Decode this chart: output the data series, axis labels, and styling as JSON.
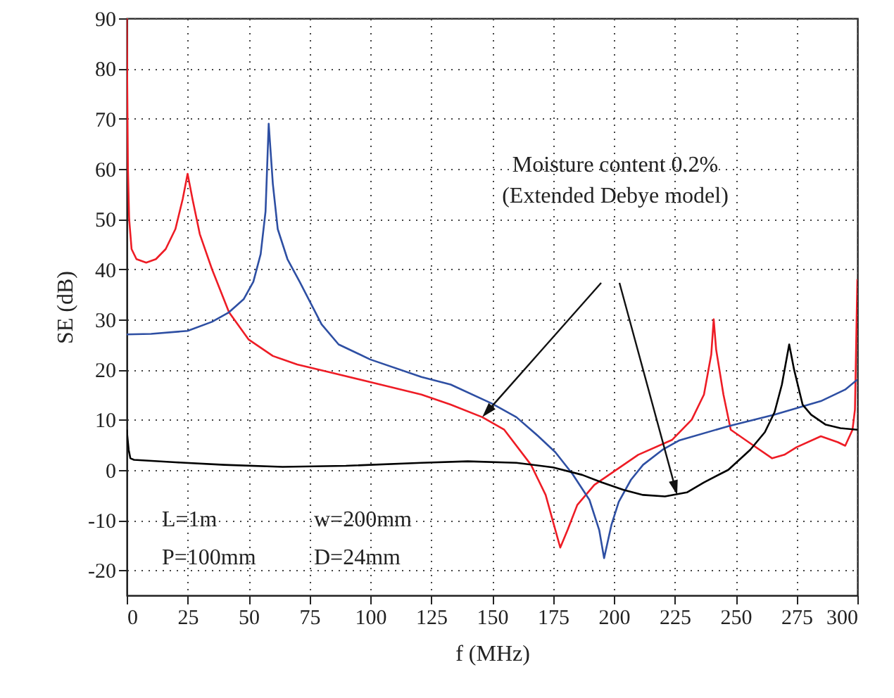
{
  "chart_data": {
    "type": "line",
    "xlabel": "f (MHz)",
    "ylabel": "SE (dB)",
    "xlim": [
      0,
      300
    ],
    "xticks": [
      0,
      25,
      50,
      75,
      100,
      125,
      150,
      175,
      200,
      225,
      250,
      275,
      300
    ],
    "ylim": [
      -25,
      90
    ],
    "yticks": [
      -20,
      -10,
      0,
      10,
      20,
      30,
      40,
      50,
      60,
      70,
      80,
      90
    ],
    "grid": true,
    "annotations": [
      "Moisture content 0.2%\n(Extended Debye model)",
      "L=1m",
      "w=200mm",
      "P=100mm",
      "D=24mm"
    ],
    "series": [
      {
        "color": "#ee1c25",
        "x": [
          0,
          0.5,
          1,
          2,
          4,
          8,
          12,
          16,
          20,
          23,
          25,
          27,
          30,
          35,
          42,
          50,
          60,
          70,
          83,
          100,
          121,
          133,
          146,
          155,
          166,
          172,
          176,
          178,
          181,
          185,
          192,
          198,
          210,
          224,
          232,
          237,
          240,
          241,
          242,
          245,
          248,
          256,
          265,
          270,
          275,
          285,
          292,
          295,
          298,
          299,
          300
        ],
        "values": [
          90,
          60,
          50,
          44,
          42,
          41.3,
          42,
          44,
          48,
          54,
          59,
          54,
          47,
          40,
          31.4,
          26,
          22.7,
          21,
          19.5,
          17.5,
          15,
          13,
          10.5,
          8,
          1,
          -5,
          -12,
          -15.5,
          -12,
          -7,
          -3,
          -1,
          3,
          6,
          10,
          15,
          23,
          30,
          24,
          15,
          8,
          5.3,
          2.3,
          3,
          4.5,
          6.7,
          5.5,
          4.8,
          8,
          12,
          38
        ]
      },
      {
        "color": "#2e4fa3",
        "x": [
          0,
          10,
          25,
          35,
          42,
          48,
          52,
          55,
          57,
          58.3,
          60,
          62,
          66,
          71,
          80,
          87,
          100,
          121,
          133,
          150,
          160,
          169,
          176,
          183,
          190,
          194,
          196,
          199,
          202,
          207,
          212,
          220,
          227,
          247,
          266,
          285,
          295,
          300
        ],
        "values": [
          27,
          27.1,
          27.7,
          29.5,
          31.4,
          34,
          37.5,
          43,
          51.5,
          69,
          57,
          48,
          42,
          37.5,
          29,
          25,
          22,
          18.5,
          17,
          13.2,
          10.5,
          6.7,
          3.5,
          -0.8,
          -6,
          -12,
          -17.6,
          -11,
          -6.4,
          -2,
          1,
          4,
          5.9,
          8.7,
          11,
          13.7,
          16,
          18
        ]
      },
      {
        "color": "#000000",
        "x": [
          0,
          0.8,
          1.5,
          3,
          20,
          40,
          64,
          90,
          121,
          140,
          160,
          175,
          187,
          195,
          204,
          212,
          221,
          230,
          237,
          247,
          256,
          262,
          266,
          269,
          272,
          274,
          277.5,
          281,
          287,
          293,
          300
        ],
        "values": [
          8,
          4,
          2.3,
          2,
          1.5,
          1,
          0.6,
          0.8,
          1.4,
          1.7,
          1.4,
          0.5,
          -1,
          -2.5,
          -4,
          -5,
          -5.3,
          -4.5,
          -2.5,
          0,
          4,
          7.5,
          11.5,
          17,
          25,
          20,
          13,
          11,
          9,
          8.3,
          8
        ]
      }
    ]
  }
}
